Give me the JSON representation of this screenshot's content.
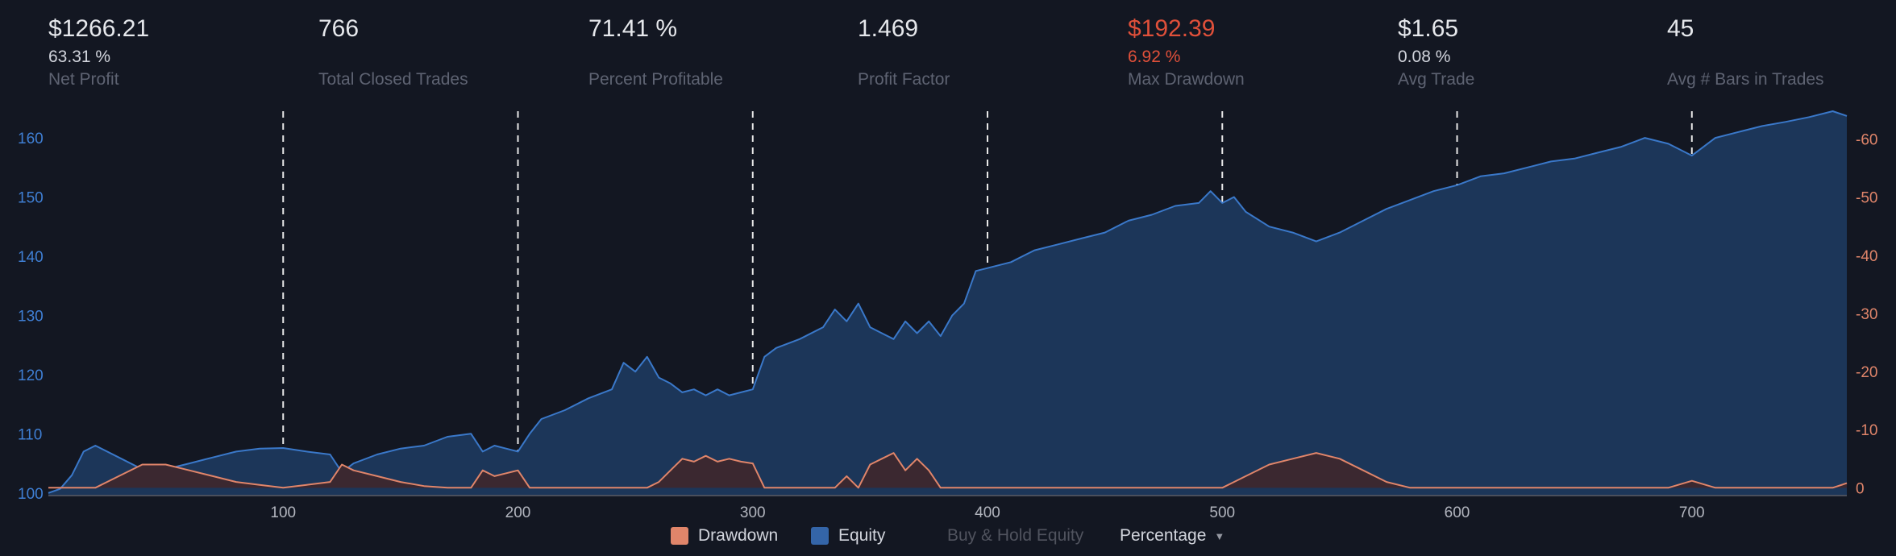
{
  "stats": [
    {
      "value": "$1266.21",
      "sub": "63.31 %",
      "label": "Net Profit",
      "neg": false
    },
    {
      "value": "766",
      "sub": "",
      "label": "Total Closed Trades",
      "neg": false
    },
    {
      "value": "71.41 %",
      "sub": "",
      "label": "Percent Profitable",
      "neg": false
    },
    {
      "value": "1.469",
      "sub": "",
      "label": "Profit Factor",
      "neg": false
    },
    {
      "value": "$192.39",
      "sub": "6.92 %",
      "label": "Max Drawdown",
      "neg": true
    },
    {
      "value": "$1.65",
      "sub": "0.08 %",
      "label": "Avg Trade",
      "neg": false
    },
    {
      "value": "45",
      "sub": "",
      "label": "Avg # Bars in Trades",
      "neg": false
    }
  ],
  "legend": {
    "drawdown": "Drawdown",
    "equity": "Equity",
    "buy_hold": "Buy & Hold Equity",
    "mode": "Percentage"
  },
  "colors": {
    "background": "#131722",
    "equity_line": "#3a78c9",
    "equity_fill": "#1c3659",
    "drawdown_line": "#e0856a",
    "drawdown_fill": "#3b2830",
    "left_axis": "#3f7fd4",
    "right_axis": "#e0856a",
    "negative": "#e0503a"
  },
  "chart_data": {
    "type": "area",
    "x_ticks": [
      100,
      200,
      300,
      400,
      500,
      600,
      700
    ],
    "xlim": [
      0,
      766
    ],
    "left_axis": {
      "ticks": [
        100,
        110,
        120,
        130,
        140,
        150,
        160
      ],
      "ylim": [
        99.7,
        164.5
      ]
    },
    "right_axis": {
      "ticks": [
        0,
        -10,
        -20,
        -30,
        -40,
        -50,
        -60
      ],
      "ylim": [
        1.2,
        -64.8
      ]
    },
    "series": [
      {
        "name": "Equity",
        "axis": "left",
        "x": [
          0,
          5,
          10,
          15,
          20,
          30,
          40,
          50,
          60,
          70,
          80,
          90,
          100,
          110,
          120,
          125,
          130,
          140,
          150,
          160,
          170,
          180,
          185,
          190,
          195,
          200,
          205,
          210,
          220,
          230,
          240,
          245,
          250,
          255,
          260,
          265,
          270,
          275,
          280,
          285,
          290,
          295,
          300,
          305,
          310,
          320,
          330,
          335,
          340,
          345,
          350,
          355,
          360,
          365,
          370,
          375,
          380,
          385,
          390,
          395,
          400,
          410,
          420,
          430,
          440,
          450,
          460,
          470,
          480,
          490,
          495,
          500,
          505,
          510,
          520,
          530,
          540,
          550,
          560,
          570,
          580,
          590,
          600,
          610,
          620,
          630,
          640,
          650,
          660,
          670,
          680,
          690,
          700,
          710,
          720,
          730,
          740,
          750,
          760,
          766
        ],
        "y": [
          100,
          100.7,
          103,
          107,
          108,
          106,
          104,
          104,
          105,
          106,
          107,
          107.5,
          107.6,
          107,
          106.5,
          103.5,
          105,
          106.5,
          107.5,
          108,
          109.5,
          110,
          107,
          108,
          107.5,
          107,
          110,
          112.5,
          114,
          116,
          117.5,
          122,
          120.5,
          123,
          119.5,
          118.5,
          117,
          117.5,
          116.5,
          117.5,
          116.5,
          117,
          117.5,
          123,
          124.5,
          126,
          128,
          131,
          129,
          132,
          128,
          127,
          126,
          129,
          127,
          129,
          126.5,
          130,
          132,
          137.5,
          138,
          139,
          141,
          142,
          143,
          144,
          146,
          147,
          148.5,
          149,
          151,
          149,
          150,
          147.5,
          145,
          144,
          142.5,
          144,
          146,
          148,
          149.5,
          151,
          152,
          153.5,
          154,
          155,
          156,
          156.5,
          157.5,
          158.5,
          160,
          159,
          157,
          160,
          161,
          162,
          162.7,
          163.5,
          164.5,
          163.7
        ]
      },
      {
        "name": "Drawdown",
        "axis": "right",
        "x": [
          0,
          5,
          10,
          15,
          20,
          30,
          40,
          50,
          60,
          70,
          80,
          90,
          100,
          110,
          120,
          125,
          130,
          140,
          150,
          160,
          170,
          180,
          185,
          190,
          195,
          200,
          205,
          210,
          220,
          230,
          240,
          245,
          250,
          255,
          260,
          265,
          270,
          275,
          280,
          285,
          290,
          295,
          300,
          305,
          310,
          320,
          330,
          335,
          340,
          345,
          350,
          355,
          360,
          365,
          370,
          375,
          380,
          385,
          390,
          395,
          400,
          410,
          420,
          430,
          440,
          450,
          460,
          470,
          480,
          490,
          495,
          500,
          505,
          510,
          520,
          530,
          540,
          550,
          560,
          570,
          580,
          590,
          600,
          610,
          620,
          630,
          640,
          650,
          660,
          670,
          680,
          690,
          700,
          710,
          720,
          730,
          740,
          750,
          760,
          766
        ],
        "y": [
          0,
          0,
          0,
          0,
          0,
          -2,
          -4,
          -4,
          -3,
          -2,
          -1,
          -0.5,
          0,
          -0.5,
          -1,
          -4,
          -3,
          -2,
          -1,
          -0.3,
          0,
          0,
          -3,
          -2,
          -2.5,
          -3,
          0,
          0,
          0,
          0,
          0,
          0,
          0,
          0,
          -1,
          -3,
          -5,
          -4.5,
          -5.5,
          -4.5,
          -5,
          -4.5,
          -4.2,
          0,
          0,
          0,
          0,
          0,
          -2,
          0,
          -4,
          -5,
          -6,
          -3,
          -5,
          -3,
          0,
          0,
          0,
          0,
          0,
          0,
          0,
          0,
          0,
          0,
          0,
          0,
          0,
          0,
          0,
          0,
          -1,
          -2,
          -4,
          -5,
          -6,
          -5,
          -3,
          -1,
          0,
          0,
          0,
          0,
          0,
          0,
          0,
          0,
          0,
          0,
          0,
          0,
          -1.2,
          0,
          0,
          0,
          0,
          0,
          0,
          -0.8
        ]
      }
    ]
  }
}
